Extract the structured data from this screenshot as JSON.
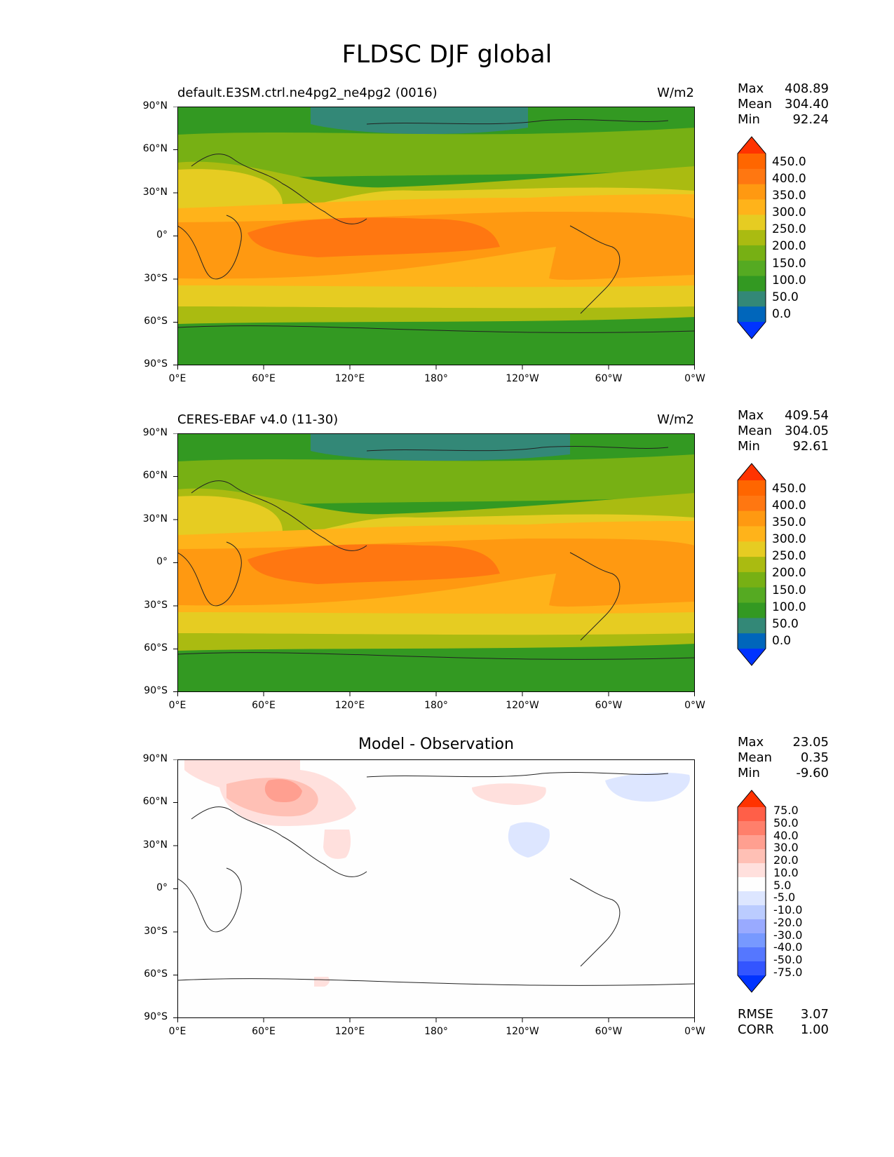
{
  "figure": {
    "title": "FLDSC DJF global"
  },
  "x_ticks": [
    "0°E",
    "60°E",
    "120°E",
    "180°",
    "120°W",
    "60°W",
    "0°W"
  ],
  "y_ticks": [
    "90°N",
    "60°N",
    "30°N",
    "0°",
    "30°S",
    "60°S",
    "90°S"
  ],
  "colors": {
    "abs_levels": [
      "#0033ff",
      "#0066bb",
      "#338877",
      "#339922",
      "#55aa22",
      "#77b014",
      "#aabb11",
      "#e6cc22",
      "#ffb31a",
      "#ff9911",
      "#ff7711",
      "#ff6600",
      "#ff3300"
    ],
    "diff_levels": [
      "#0033ff",
      "#3355ff",
      "#5577ff",
      "#7799ff",
      "#99aaff",
      "#bbccff",
      "#dde6ff",
      "#fefefe",
      "#ffe0dd",
      "#ffc0b5",
      "#ff9f90",
      "#ff7f6b",
      "#ff5f48",
      "#ff3300"
    ]
  },
  "panels": [
    {
      "title": "default.E3SM.ctrl.ne4pg2_ne4pg2 (0016)",
      "units": "W/m2",
      "stats": [
        {
          "label": "Max",
          "value": "408.89"
        },
        {
          "label": "Mean",
          "value": "304.40"
        },
        {
          "label": "Min",
          "value": "92.24"
        }
      ],
      "colorbar_labels": [
        "450.0",
        "400.0",
        "350.0",
        "300.0",
        "250.0",
        "200.0",
        "150.0",
        "100.0",
        "50.0",
        "0.0"
      ]
    },
    {
      "title": "CERES-EBAF v4.0 (11-30)",
      "units": "W/m2",
      "stats": [
        {
          "label": "Max",
          "value": "409.54"
        },
        {
          "label": "Mean",
          "value": "304.05"
        },
        {
          "label": "Min",
          "value": "92.61"
        }
      ],
      "colorbar_labels": [
        "450.0",
        "400.0",
        "350.0",
        "300.0",
        "250.0",
        "200.0",
        "150.0",
        "100.0",
        "50.0",
        "0.0"
      ]
    },
    {
      "title": "Model - Observation",
      "stats": [
        {
          "label": "Max",
          "value": "23.05"
        },
        {
          "label": "Mean",
          "value": "0.35"
        },
        {
          "label": "Min",
          "value": "-9.60"
        }
      ],
      "colorbar_labels": [
        "75.0",
        "50.0",
        "40.0",
        "30.0",
        "20.0",
        "10.0",
        "5.0",
        "-5.0",
        "-10.0",
        "-20.0",
        "-30.0",
        "-40.0",
        "-50.0",
        "-75.0"
      ],
      "metrics": [
        {
          "label": "RMSE",
          "value": "3.07"
        },
        {
          "label": "CORR",
          "value": "1.00"
        }
      ]
    }
  ]
}
